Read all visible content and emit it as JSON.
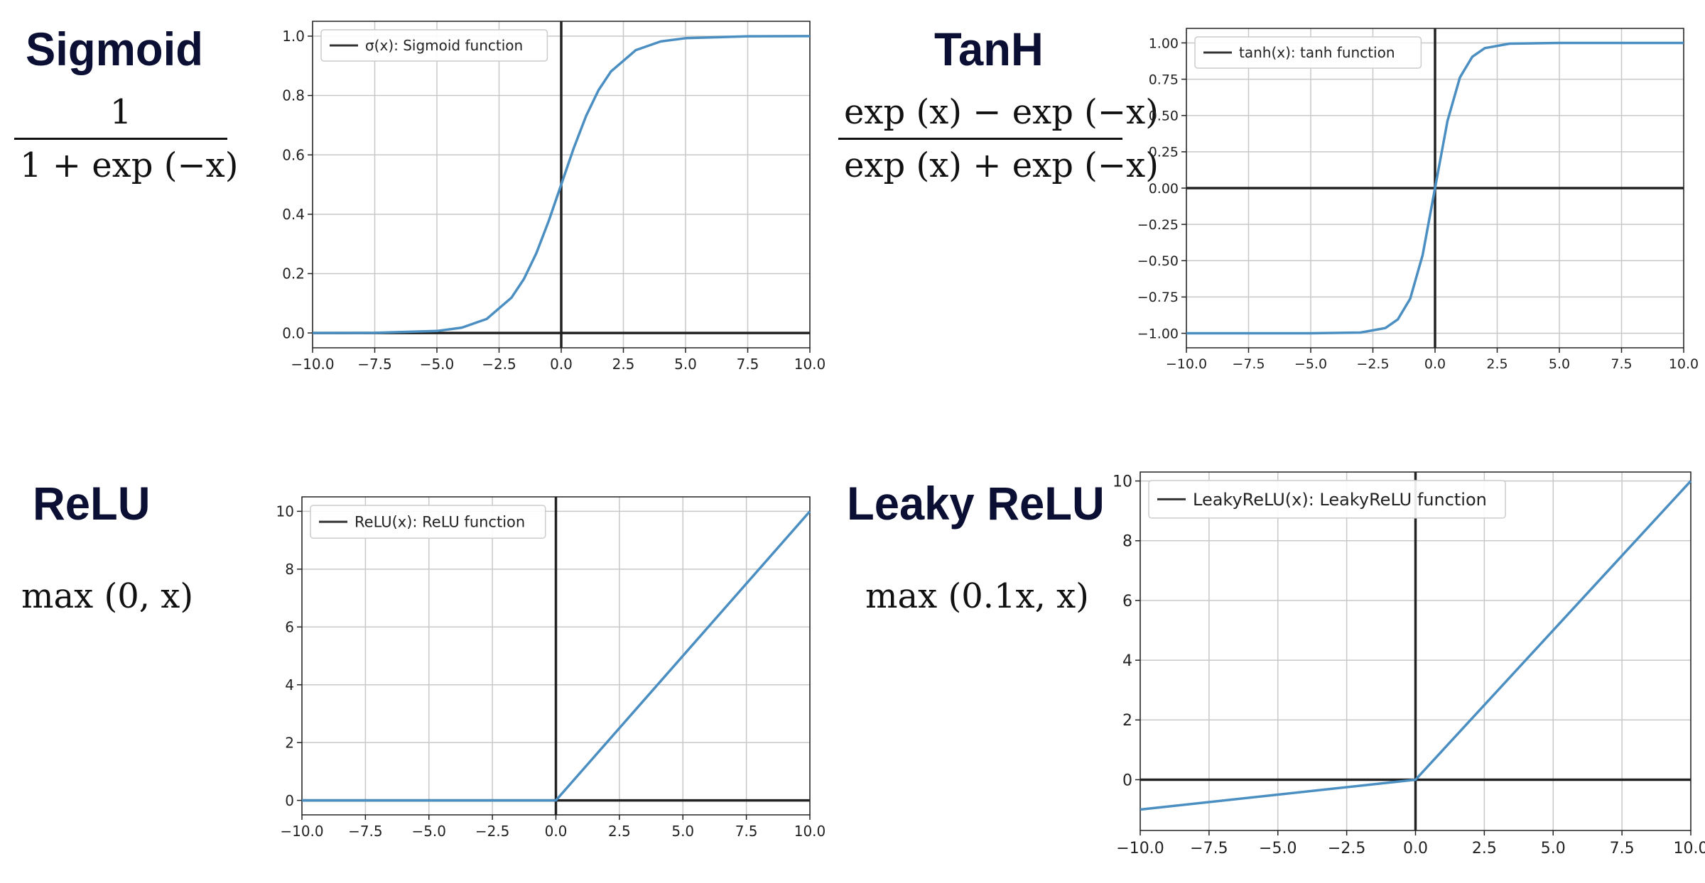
{
  "panels": [
    {
      "title": "Sigmoid",
      "formula": {
        "numerator": "1",
        "denominator": "1 + exp (−x)"
      }
    },
    {
      "title": "TanH",
      "formula": {
        "numerator": "exp (x) − exp (−x)",
        "denominator": "exp (x) + exp (−x)"
      }
    },
    {
      "title": "ReLU",
      "formula": {
        "text": "max (0, x)"
      }
    },
    {
      "title": "Leaky ReLU",
      "formula": {
        "text": "max (0.1x, x)"
      }
    }
  ],
  "colors": {
    "line": "#4a8ec2",
    "axis": "#222222",
    "grid": "#c8c8c8",
    "legend_line": "#333333"
  },
  "chart_data": [
    {
      "type": "line",
      "function": "sigmoid",
      "legend": "σ(x): Sigmoid function",
      "xlim": [
        -10,
        10
      ],
      "ylim": [
        -0.05,
        1.05
      ],
      "xticks": [
        "−10.0",
        "−7.5",
        "−5.0",
        "−2.5",
        "0.0",
        "2.5",
        "5.0",
        "7.5",
        "10.0"
      ],
      "xtick_values": [
        -10,
        -7.5,
        -5,
        -2.5,
        0,
        2.5,
        5,
        7.5,
        10
      ],
      "yticks": [
        "0.0",
        "0.2",
        "0.4",
        "0.6",
        "0.8",
        "1.0"
      ],
      "ytick_values": [
        0,
        0.2,
        0.4,
        0.6,
        0.8,
        1.0
      ],
      "x": [
        -10,
        -7.5,
        -5,
        -4,
        -3,
        -2,
        -1.5,
        -1,
        -0.5,
        0,
        0.5,
        1,
        1.5,
        2,
        3,
        4,
        5,
        7.5,
        10
      ],
      "y": [
        4.54e-05,
        0.00055,
        0.0067,
        0.018,
        0.047,
        0.119,
        0.182,
        0.269,
        0.378,
        0.5,
        0.622,
        0.731,
        0.818,
        0.881,
        0.953,
        0.982,
        0.993,
        0.99945,
        0.99995
      ],
      "grid": true,
      "legend_position": "upper-left"
    },
    {
      "type": "line",
      "function": "tanh",
      "legend": "tanh(x): tanh function",
      "xlim": [
        -10,
        10
      ],
      "ylim": [
        -1.1,
        1.1
      ],
      "xticks": [
        "−10.0",
        "−7.5",
        "−5.0",
        "−2.5",
        "0.0",
        "2.5",
        "5.0",
        "7.5",
        "10.0"
      ],
      "xtick_values": [
        -10,
        -7.5,
        -5,
        -2.5,
        0,
        2.5,
        5,
        7.5,
        10
      ],
      "yticks": [
        "−1.00",
        "−0.75",
        "−0.50",
        "−0.25",
        "0.00",
        "0.25",
        "0.50",
        "0.75",
        "1.00"
      ],
      "ytick_values": [
        -1,
        -0.75,
        -0.5,
        -0.25,
        0,
        0.25,
        0.5,
        0.75,
        1
      ],
      "x": [
        -10,
        -5,
        -3,
        -2,
        -1.5,
        -1,
        -0.5,
        0,
        0.5,
        1,
        1.5,
        2,
        3,
        5,
        10
      ],
      "y": [
        -1.0,
        -0.9999,
        -0.995,
        -0.964,
        -0.905,
        -0.762,
        -0.462,
        0,
        0.462,
        0.762,
        0.905,
        0.964,
        0.995,
        0.9999,
        1.0
      ],
      "grid": true,
      "legend_position": "upper-left"
    },
    {
      "type": "line",
      "function": "relu",
      "legend": "ReLU(x): ReLU function",
      "xlim": [
        -10,
        10
      ],
      "ylim": [
        -0.5,
        10.5
      ],
      "xticks": [
        "−10.0",
        "−7.5",
        "−5.0",
        "−2.5",
        "0.0",
        "2.5",
        "5.0",
        "7.5",
        "10.0"
      ],
      "xtick_values": [
        -10,
        -7.5,
        -5,
        -2.5,
        0,
        2.5,
        5,
        7.5,
        10
      ],
      "yticks": [
        "0",
        "2",
        "4",
        "6",
        "8",
        "10"
      ],
      "ytick_values": [
        0,
        2,
        4,
        6,
        8,
        10
      ],
      "x": [
        -10,
        0,
        10
      ],
      "y": [
        0,
        0,
        10
      ],
      "grid": true,
      "legend_position": "upper-left"
    },
    {
      "type": "line",
      "function": "leaky_relu",
      "legend": "LeakyReLU(x): LeakyReLU function",
      "xlim": [
        -10,
        10
      ],
      "ylim": [
        -1.7,
        10.3
      ],
      "xticks": [
        "−10.0",
        "−7.5",
        "−5.0",
        "−2.5",
        "0.0",
        "2.5",
        "5.0",
        "7.5",
        "10.0"
      ],
      "xtick_values": [
        -10,
        -7.5,
        -5,
        -2.5,
        0,
        2.5,
        5,
        7.5,
        10
      ],
      "yticks": [
        "0",
        "2",
        "4",
        "6",
        "8",
        "10"
      ],
      "ytick_values": [
        0,
        2,
        4,
        6,
        8,
        10
      ],
      "x": [
        -10,
        0,
        10
      ],
      "y": [
        -1,
        0,
        10
      ],
      "grid": true,
      "legend_position": "upper-left"
    }
  ]
}
